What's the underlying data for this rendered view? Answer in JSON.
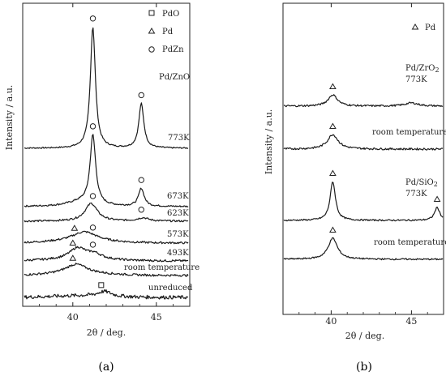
{
  "chart_data": [
    {
      "type": "line",
      "panel_caption": "(a)",
      "xlabel": "2θ / deg.",
      "ylabel": "Intensity / a.u.",
      "xlim": [
        37,
        47
      ],
      "xticks": [
        40,
        45
      ],
      "legend": [
        {
          "marker": "square",
          "name": "PdO"
        },
        {
          "marker": "triangle",
          "name": "Pd"
        },
        {
          "marker": "circle",
          "name": "PdZn"
        }
      ],
      "sample_label": "Pd/ZnO",
      "series": [
        {
          "name": "773K",
          "noise": 0.8,
          "peaks": [
            [
              41.2,
              150,
              0.18
            ],
            [
              44.1,
              55,
              0.18
            ]
          ],
          "markers": [
            [
              "circle",
              41.2
            ],
            [
              "circle",
              44.1
            ]
          ]
        },
        {
          "name": "673K",
          "noise": 1.0,
          "peaks": [
            [
              41.2,
              85,
              0.2
            ],
            [
              44.1,
              22,
              0.2
            ],
            [
              40.5,
              6,
              1.0
            ]
          ],
          "markers": [
            [
              "circle",
              41.2
            ],
            [
              "circle",
              44.1
            ]
          ]
        },
        {
          "name": "623K",
          "noise": 1.1,
          "peaks": [
            [
              41.1,
              22,
              0.45
            ],
            [
              44.2,
              4,
              0.4
            ]
          ],
          "markers": [
            [
              "circle",
              41.2
            ],
            [
              "circle",
              44.1
            ]
          ]
        },
        {
          "name": "573K",
          "noise": 1.2,
          "peaks": [
            [
              40.7,
              12,
              0.9
            ]
          ],
          "markers": [
            [
              "triangle",
              40.1
            ],
            [
              "circle",
              41.2
            ]
          ]
        },
        {
          "name": "493K",
          "noise": 1.3,
          "peaks": [
            [
              40.3,
              14,
              0.6
            ],
            [
              41.3,
              6,
              0.5
            ]
          ],
          "markers": [
            [
              "triangle",
              40.0
            ],
            [
              "circle",
              41.2
            ]
          ]
        },
        {
          "name": "room temperature",
          "noise": 1.3,
          "peaks": [
            [
              40.2,
              12,
              0.8
            ]
          ],
          "markers": [
            [
              "triangle",
              40.0
            ]
          ]
        },
        {
          "name": "unreduced",
          "noise": 2.2,
          "peaks": [
            [
              41.9,
              6,
              0.5
            ]
          ],
          "markers": [
            [
              "square",
              41.7
            ]
          ]
        }
      ]
    },
    {
      "type": "line",
      "panel_caption": "(b)",
      "xlabel": "2θ / deg.",
      "ylabel": "Intensity / a.u.",
      "xlim": [
        37,
        47
      ],
      "xticks": [
        40,
        45
      ],
      "legend": [
        {
          "marker": "triangle",
          "name": "Pd"
        }
      ],
      "series": [
        {
          "name": "Pd/ZrO2 773K",
          "noise": 1.1,
          "peaks": [
            [
              40.1,
              14,
              0.35
            ],
            [
              45.0,
              4,
              0.5
            ]
          ],
          "markers": [
            [
              "triangle",
              40.1
            ]
          ]
        },
        {
          "name": "room temperature",
          "noise": 1.2,
          "peaks": [
            [
              40.1,
              18,
              0.4
            ]
          ],
          "markers": [
            [
              "triangle",
              40.1
            ]
          ]
        },
        {
          "name": "Pd/SiO2 773K",
          "noise": 0.9,
          "peaks": [
            [
              40.1,
              48,
              0.2
            ],
            [
              46.6,
              16,
              0.2
            ]
          ],
          "markers": [
            [
              "triangle",
              40.1
            ],
            [
              "triangle",
              46.6
            ]
          ]
        },
        {
          "name": "room temperature",
          "noise": 0.9,
          "peaks": [
            [
              40.1,
              26,
              0.35
            ]
          ],
          "markers": [
            [
              "triangle",
              40.1
            ]
          ]
        }
      ]
    }
  ]
}
